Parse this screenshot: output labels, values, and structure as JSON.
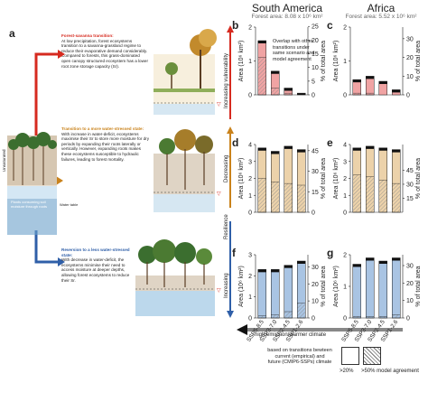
{
  "panel_a": {
    "letter": "a",
    "forest_savanna": {
      "title": "Forest-savanna transition:",
      "body": "At low precipitation, forest ecosystems transition to a savanna-grassland regime to reduce their evaporative demand considerably. Compared to forests, this grass-dominated open canopy structured ecosystem has a lower root zone storage capacity (Sr)."
    },
    "more_stressed": {
      "title": "Transition to a more water-stressed state:",
      "body": "With increase in water-deficit, ecosystems maximise their Sr to store more moisture for dry periods by expanding their roots laterally or vertically. However, expanding roots makes these ecosystems susceptible to hydraulic failures, leading to forest mortality."
    },
    "less_stressed": {
      "title": "Reversion to a less water-stressed state:",
      "body": "With decrease in water-deficit, the ecosystems minimise their need to access moisture at deeper depths, allowing forest ecosystems to reduce their Sr."
    },
    "left_labels": {
      "unsaturated": "Unsaturated",
      "plants": "Plants consuming soil moisture through roots",
      "water_table": "Water table"
    },
    "side_labels": {
      "increasing_vulnerability": "Increasing vulnerability",
      "resilience": "Resilience",
      "decreasing": "Decreasing",
      "increasing": "Increasing"
    }
  },
  "headers": {
    "south_america": "South America",
    "sa_area": "Forest area: 8.08 x 10⁶ km²",
    "africa": "Africa",
    "af_area": "Forest area: 5.52 x 10⁶ km²"
  },
  "axis_labels": {
    "area": "Area (10⁶ km²)",
    "pct": "% of total area"
  },
  "annotation": "Overlap with other transitions under same scenario and model agreement",
  "scenarios_label": "high emission/warmer climate",
  "footnote": {
    "line1": "based on transitions bewteen",
    "line2": "current (empirical) and",
    "line3": "future (CMIP6-SSPs) climate",
    "legend1": ">20%",
    "legend2": ">50% model agreement"
  },
  "colors": {
    "red_bar": "#f0a3a3",
    "orange_bar": "#ecd2aa",
    "blue_bar": "#a9c4e3"
  },
  "chart_data": [
    {
      "panel": "b",
      "type": "bar",
      "region": "South America",
      "transition": "Forest-savanna",
      "categories": [
        "SSP5-8.5",
        "SSP3-7.0",
        "SSP2-4.5",
        "SSP1-2.6"
      ],
      "values": [
        1.6,
        0.7,
        0.2,
        0.05
      ],
      "agree_50": [
        1.1,
        0.2,
        0.05,
        0.0
      ],
      "ylim": [
        0,
        2
      ],
      "yticks": [
        "0",
        "1",
        "2"
      ],
      "y2ticks": [
        "0",
        "5",
        "10",
        "15",
        "20",
        "25"
      ],
      "y2max": 24.75
    },
    {
      "panel": "c",
      "type": "bar",
      "region": "Africa",
      "transition": "Forest-savanna",
      "categories": [
        "SSP5-8.5",
        "SSP3-7.0",
        "SSP2-4.5",
        "SSP1-2.6"
      ],
      "values": [
        0.45,
        0.55,
        0.4,
        0.15
      ],
      "agree_50": [
        0.05,
        0.05,
        0.0,
        0.0
      ],
      "ylim": [
        0,
        2
      ],
      "yticks": [
        "0",
        "1",
        "2"
      ],
      "y2ticks": [
        "0",
        "10",
        "20",
        "30"
      ],
      "y2max": 36.2
    },
    {
      "panel": "d",
      "type": "bar",
      "region": "South America",
      "transition": "More water-stressed",
      "categories": [
        "SSP5-8.5",
        "SSP3-7.0",
        "SSP2-4.5",
        "SSP1-2.6"
      ],
      "values": [
        3.8,
        3.6,
        3.9,
        3.7
      ],
      "agree_50": [
        2.0,
        1.8,
        1.7,
        1.6
      ],
      "ylim": [
        0,
        4
      ],
      "yticks": [
        "0",
        "1",
        "2",
        "3",
        "4"
      ],
      "y2ticks": [
        "0",
        "15",
        "30",
        "45"
      ],
      "y2max": 49.5
    },
    {
      "panel": "e",
      "type": "bar",
      "region": "Africa",
      "transition": "More water-stressed",
      "categories": [
        "SSP5-8.5",
        "SSP3-7.0",
        "SSP2-4.5",
        "SSP1-2.6"
      ],
      "values": [
        3.8,
        3.9,
        3.8,
        3.7
      ],
      "agree_50": [
        2.2,
        2.1,
        1.9,
        1.7
      ],
      "ylim": [
        0,
        4
      ],
      "yticks": [
        "0",
        "1",
        "2",
        "3",
        "4"
      ],
      "y2ticks": [
        "15",
        "30",
        "45"
      ],
      "y2max": 72.5
    },
    {
      "panel": "f",
      "type": "bar",
      "region": "South America",
      "transition": "Less water-stressed",
      "categories": [
        "SSP5-8.5",
        "SSP3-7.0",
        "SSP2-4.5",
        "SSP1-2.6"
      ],
      "values": [
        2.3,
        2.3,
        2.5,
        2.7
      ],
      "agree_50": [
        0.1,
        0.15,
        0.3,
        0.7
      ],
      "ylim": [
        0,
        3
      ],
      "yticks": [
        "0",
        "1",
        "2",
        "3"
      ],
      "y2ticks": [
        "0",
        "10",
        "20",
        "30"
      ],
      "y2max": 37.1
    },
    {
      "panel": "g",
      "type": "bar",
      "region": "Africa",
      "transition": "Less water-stressed",
      "categories": [
        "SSP5-8.5",
        "SSP3-7.0",
        "SSP2-4.5",
        "SSP1-2.6"
      ],
      "values": [
        1.7,
        1.9,
        1.8,
        1.9
      ],
      "agree_50": [
        0.05,
        0.05,
        0.05,
        0.1
      ],
      "ylim": [
        0,
        2
      ],
      "yticks": [
        "0",
        "1",
        "2"
      ],
      "y2ticks": [
        "0",
        "10",
        "20",
        "30"
      ],
      "y2max": 36.2
    }
  ]
}
